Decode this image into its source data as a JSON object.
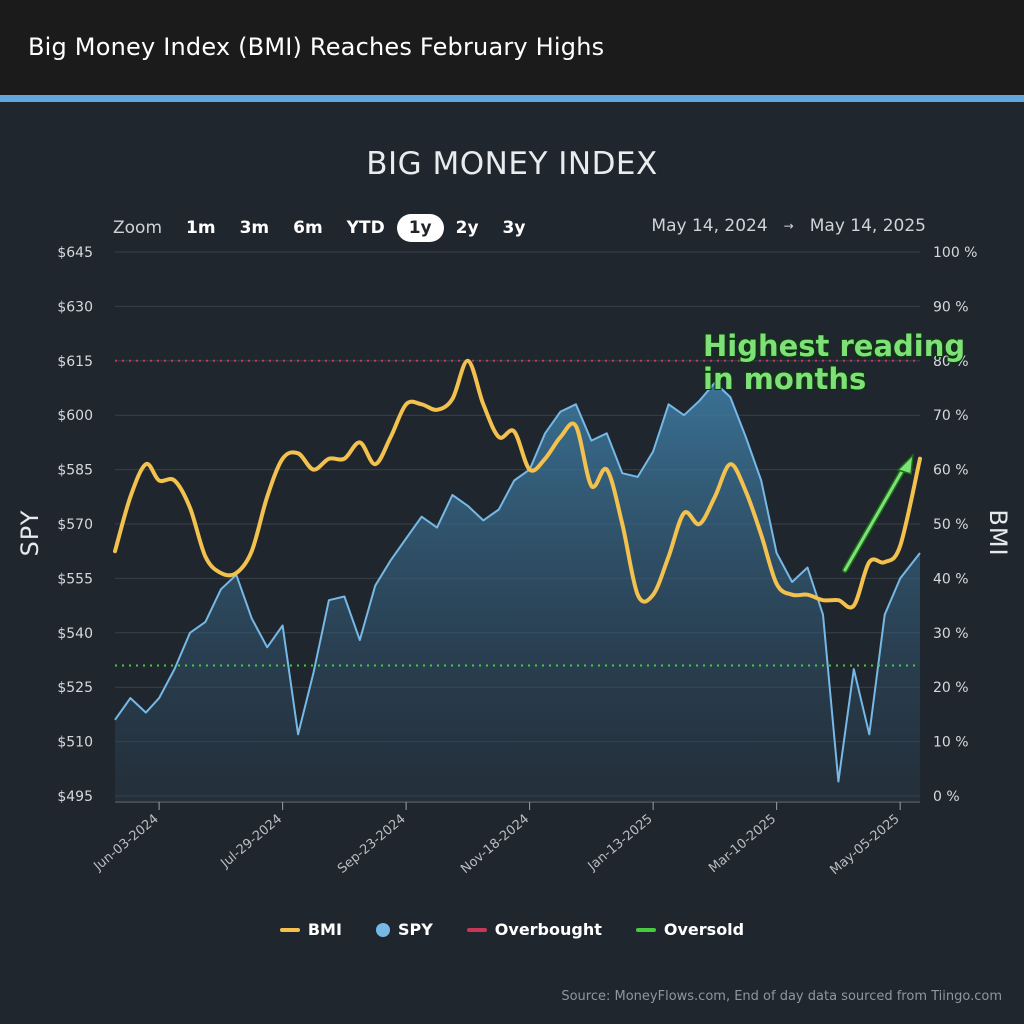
{
  "header": {
    "headline": "Big Money Index (BMI) Reaches February Highs",
    "accent_color": "#5fa9dd"
  },
  "toolbar": {
    "zoom_label": "Zoom",
    "options": [
      "1m",
      "3m",
      "6m",
      "YTD",
      "1y",
      "2y",
      "3y"
    ],
    "selected": "1y",
    "range_start": "May 14, 2024",
    "range_arrow": "→",
    "range_end": "May 14, 2025"
  },
  "annotation": {
    "line1": "Highest reading",
    "line2": "in months",
    "color": "#7fe07a"
  },
  "legend": {
    "bmi": "BMI",
    "spy": "SPY",
    "overbought": "Overbought",
    "oversold": "Oversold"
  },
  "source": "Source: MoneyFlows.com, End of day data sourced from Tiingo.com",
  "chart_data": {
    "type": "line",
    "title": "BIG MONEY INDEX",
    "ylabel_left": "SPY",
    "ylabel_right": "BMI",
    "ylim_left": [
      495,
      645
    ],
    "ylim_right": [
      0,
      100
    ],
    "yticks_left": [
      "$645",
      "$630",
      "$615",
      "$600",
      "$585",
      "$570",
      "$555",
      "$540",
      "$525",
      "$510",
      "$495"
    ],
    "yticks_right": [
      "100 %",
      "90 %",
      "80 %",
      "70 %",
      "60 %",
      "50 %",
      "40 %",
      "30 %",
      "20 %",
      "10 %",
      "0 %"
    ],
    "xticks": [
      "Jun-03-2024",
      "Jul-29-2024",
      "Sep-23-2024",
      "Nov-18-2024",
      "Jan-13-2025",
      "Mar-10-2025",
      "May-05-2025"
    ],
    "xlim": [
      "2024-05-14",
      "2025-05-14"
    ],
    "grid": true,
    "legend_position": "bottom",
    "thresholds": [
      {
        "name": "Overbought",
        "value": 80,
        "axis": "right",
        "color": "#c8375a"
      },
      {
        "name": "Oversold",
        "value": 24,
        "axis": "right",
        "color": "#49c93f"
      }
    ],
    "series": [
      {
        "name": "BMI",
        "axis": "right",
        "color": "#f2c14e",
        "x": [
          "2024-05-14",
          "2024-05-21",
          "2024-05-28",
          "2024-06-03",
          "2024-06-10",
          "2024-06-17",
          "2024-06-24",
          "2024-07-01",
          "2024-07-08",
          "2024-07-15",
          "2024-07-22",
          "2024-07-29",
          "2024-08-05",
          "2024-08-12",
          "2024-08-19",
          "2024-08-26",
          "2024-09-02",
          "2024-09-09",
          "2024-09-16",
          "2024-09-23",
          "2024-09-30",
          "2024-10-07",
          "2024-10-14",
          "2024-10-21",
          "2024-10-28",
          "2024-11-04",
          "2024-11-11",
          "2024-11-18",
          "2024-11-25",
          "2024-12-02",
          "2024-12-09",
          "2024-12-16",
          "2024-12-23",
          "2024-12-30",
          "2025-01-06",
          "2025-01-13",
          "2025-01-20",
          "2025-01-27",
          "2025-02-03",
          "2025-02-10",
          "2025-02-17",
          "2025-02-24",
          "2025-03-03",
          "2025-03-10",
          "2025-03-17",
          "2025-03-24",
          "2025-03-31",
          "2025-04-07",
          "2025-04-14",
          "2025-04-21",
          "2025-04-28",
          "2025-05-05",
          "2025-05-14"
        ],
        "values": [
          45,
          55,
          61,
          58,
          58,
          53,
          44,
          41,
          41,
          45,
          55,
          62,
          63,
          60,
          62,
          62,
          65,
          61,
          66,
          72,
          72,
          71,
          73,
          80,
          72,
          66,
          67,
          60,
          62,
          66,
          68,
          57,
          60,
          50,
          37,
          37,
          44,
          52,
          50,
          55,
          61,
          56,
          48,
          39,
          37,
          37,
          36,
          36,
          35,
          43,
          43,
          46,
          62
        ]
      },
      {
        "name": "SPY",
        "axis": "left",
        "color": "#76b8e6",
        "x": [
          "2024-05-14",
          "2024-05-21",
          "2024-05-28",
          "2024-06-03",
          "2024-06-10",
          "2024-06-17",
          "2024-06-24",
          "2024-07-01",
          "2024-07-08",
          "2024-07-15",
          "2024-07-22",
          "2024-07-29",
          "2024-08-05",
          "2024-08-12",
          "2024-08-19",
          "2024-08-26",
          "2024-09-02",
          "2024-09-09",
          "2024-09-16",
          "2024-09-23",
          "2024-09-30",
          "2024-10-07",
          "2024-10-14",
          "2024-10-21",
          "2024-10-28",
          "2024-11-04",
          "2024-11-11",
          "2024-11-18",
          "2024-11-25",
          "2024-12-02",
          "2024-12-09",
          "2024-12-16",
          "2024-12-23",
          "2024-12-30",
          "2025-01-06",
          "2025-01-13",
          "2025-01-20",
          "2025-01-27",
          "2025-02-03",
          "2025-02-10",
          "2025-02-17",
          "2025-02-24",
          "2025-03-03",
          "2025-03-10",
          "2025-03-17",
          "2025-03-24",
          "2025-03-31",
          "2025-04-07",
          "2025-04-14",
          "2025-04-21",
          "2025-04-28",
          "2025-05-05",
          "2025-05-14"
        ],
        "values": [
          516,
          522,
          518,
          522,
          530,
          540,
          543,
          552,
          556,
          544,
          536,
          542,
          512,
          529,
          549,
          550,
          538,
          553,
          560,
          566,
          572,
          569,
          578,
          575,
          571,
          574,
          582,
          585,
          595,
          601,
          603,
          593,
          595,
          584,
          583,
          590,
          603,
          600,
          604,
          609,
          605,
          594,
          582,
          562,
          554,
          558,
          545,
          499,
          530,
          512,
          545,
          555,
          562
        ]
      }
    ]
  }
}
